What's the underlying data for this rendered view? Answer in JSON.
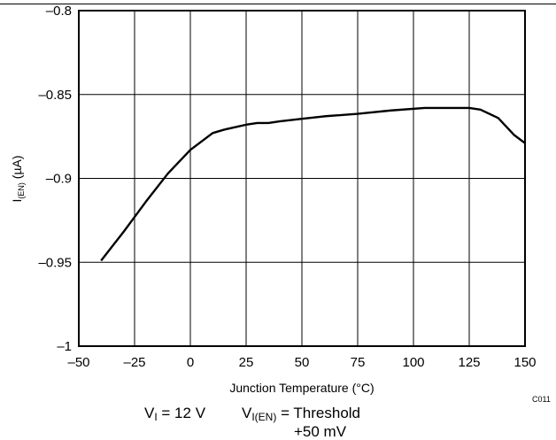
{
  "chart_data": {
    "type": "line",
    "title": "",
    "xlabel": "Junction Temperature (°C)",
    "ylabel_main": "I",
    "ylabel_sub": "(EN)",
    "ylabel_unit": " (µA)",
    "xlim": [
      -50,
      150
    ],
    "ylim": [
      -1,
      -0.8
    ],
    "x_ticks": [
      -50,
      -25,
      0,
      25,
      50,
      75,
      100,
      125,
      150
    ],
    "x_tick_labels": [
      "–50",
      "–25",
      "0",
      "25",
      "50",
      "75",
      "100",
      "125",
      "150"
    ],
    "y_ticks": [
      -0.8,
      -0.85,
      -0.9,
      -0.95,
      -1
    ],
    "y_tick_labels": [
      "–0.8",
      "–0.85",
      "–0.9",
      "–0.95",
      "–1"
    ],
    "grid": true,
    "legend": "none",
    "line_color": "#000000",
    "series": [
      {
        "x": [
          -40,
          -30,
          -20,
          -10,
          0,
          10,
          15,
          20,
          25,
          30,
          35,
          40,
          50,
          60,
          75,
          90,
          105,
          115,
          125,
          130,
          138,
          145,
          150
        ],
        "y": [
          -0.949,
          -0.932,
          -0.914,
          -0.897,
          -0.883,
          -0.873,
          -0.871,
          -0.8695,
          -0.868,
          -0.867,
          -0.867,
          -0.866,
          -0.8645,
          -0.863,
          -0.8615,
          -0.8595,
          -0.858,
          -0.858,
          -0.858,
          -0.859,
          -0.864,
          -0.874,
          -0.879
        ]
      }
    ]
  },
  "figure_code": "C011",
  "conditions": {
    "vi_main": "V",
    "vi_sub": "I",
    "vi_value": " = 12 V",
    "ven_main": "V",
    "ven_sub": "I(EN)",
    "ven_value": " = Threshold",
    "ven_value_line2": "+50 mV"
  }
}
